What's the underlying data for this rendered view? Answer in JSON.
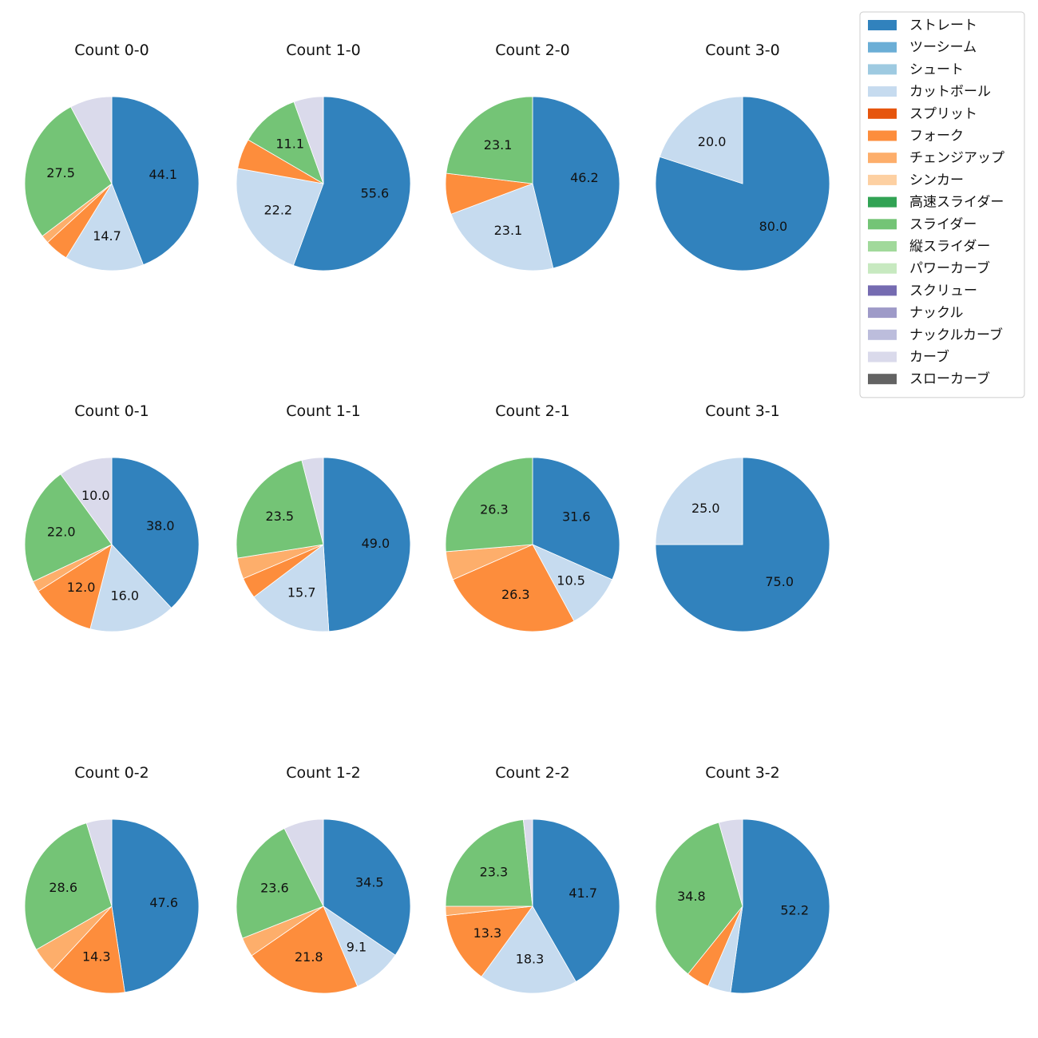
{
  "chart_data": {
    "type": "pie",
    "legend": {
      "placement": "top-right",
      "entries": [
        {
          "name": "ストレート",
          "color": "#3182bd"
        },
        {
          "name": "ツーシーム",
          "color": "#6baed6"
        },
        {
          "name": "シュート",
          "color": "#9ecae1"
        },
        {
          "name": "カットボール",
          "color": "#c6dbef"
        },
        {
          "name": "スプリット",
          "color": "#e6550d"
        },
        {
          "name": "フォーク",
          "color": "#fd8d3c"
        },
        {
          "name": "チェンジアップ",
          "color": "#fdae6b"
        },
        {
          "name": "シンカー",
          "color": "#fdd0a2"
        },
        {
          "name": "高速スライダー",
          "color": "#31a354"
        },
        {
          "name": "スライダー",
          "color": "#74c476"
        },
        {
          "name": "縦スライダー",
          "color": "#a1d99b"
        },
        {
          "name": "パワーカーブ",
          "color": "#c7e9c0"
        },
        {
          "name": "スクリュー",
          "color": "#756bb1"
        },
        {
          "name": "ナックル",
          "color": "#9e9ac8"
        },
        {
          "name": "ナックルカーブ",
          "color": "#bcbddc"
        },
        {
          "name": "カーブ",
          "color": "#dadaeb"
        },
        {
          "name": "スローカーブ",
          "color": "#636363"
        }
      ]
    },
    "pies": [
      {
        "title": "Count 0-0",
        "slices": [
          {
            "pitch": "ストレート",
            "value": 44.1,
            "label": "44.1"
          },
          {
            "pitch": "カットボール",
            "value": 14.7,
            "label": "14.7"
          },
          {
            "pitch": "フォーク",
            "value": 4.4,
            "label": ""
          },
          {
            "pitch": "チェンジアップ",
            "value": 1.5,
            "label": ""
          },
          {
            "pitch": "スライダー",
            "value": 27.5,
            "label": "27.5"
          },
          {
            "pitch": "カーブ",
            "value": 7.8,
            "label": ""
          }
        ]
      },
      {
        "title": "Count 1-0",
        "slices": [
          {
            "pitch": "ストレート",
            "value": 55.6,
            "label": "55.6"
          },
          {
            "pitch": "カットボール",
            "value": 22.2,
            "label": "22.2"
          },
          {
            "pitch": "フォーク",
            "value": 5.6,
            "label": ""
          },
          {
            "pitch": "スライダー",
            "value": 11.1,
            "label": "11.1"
          },
          {
            "pitch": "カーブ",
            "value": 5.5,
            "label": ""
          }
        ]
      },
      {
        "title": "Count 2-0",
        "slices": [
          {
            "pitch": "ストレート",
            "value": 46.2,
            "label": "46.2"
          },
          {
            "pitch": "カットボール",
            "value": 23.1,
            "label": "23.1"
          },
          {
            "pitch": "フォーク",
            "value": 7.6,
            "label": ""
          },
          {
            "pitch": "スライダー",
            "value": 23.1,
            "label": "23.1"
          }
        ]
      },
      {
        "title": "Count 3-0",
        "slices": [
          {
            "pitch": "ストレート",
            "value": 80.0,
            "label": "80.0"
          },
          {
            "pitch": "カットボール",
            "value": 20.0,
            "label": "20.0"
          }
        ]
      },
      {
        "title": "Count 0-1",
        "slices": [
          {
            "pitch": "ストレート",
            "value": 38.0,
            "label": "38.0"
          },
          {
            "pitch": "カットボール",
            "value": 16.0,
            "label": "16.0"
          },
          {
            "pitch": "フォーク",
            "value": 12.0,
            "label": "12.0"
          },
          {
            "pitch": "チェンジアップ",
            "value": 2.0,
            "label": ""
          },
          {
            "pitch": "スライダー",
            "value": 22.0,
            "label": "22.0"
          },
          {
            "pitch": "カーブ",
            "value": 10.0,
            "label": "10.0"
          }
        ]
      },
      {
        "title": "Count 1-1",
        "slices": [
          {
            "pitch": "ストレート",
            "value": 49.0,
            "label": "49.0"
          },
          {
            "pitch": "カットボール",
            "value": 15.7,
            "label": "15.7"
          },
          {
            "pitch": "フォーク",
            "value": 3.9,
            "label": ""
          },
          {
            "pitch": "チェンジアップ",
            "value": 3.9,
            "label": ""
          },
          {
            "pitch": "スライダー",
            "value": 23.5,
            "label": "23.5"
          },
          {
            "pitch": "カーブ",
            "value": 4.0,
            "label": ""
          }
        ]
      },
      {
        "title": "Count 2-1",
        "slices": [
          {
            "pitch": "ストレート",
            "value": 31.6,
            "label": "31.6"
          },
          {
            "pitch": "カットボール",
            "value": 10.5,
            "label": "10.5"
          },
          {
            "pitch": "フォーク",
            "value": 26.3,
            "label": "26.3"
          },
          {
            "pitch": "チェンジアップ",
            "value": 5.3,
            "label": ""
          },
          {
            "pitch": "スライダー",
            "value": 26.3,
            "label": "26.3"
          }
        ]
      },
      {
        "title": "Count 3-1",
        "slices": [
          {
            "pitch": "ストレート",
            "value": 75.0,
            "label": "75.0"
          },
          {
            "pitch": "カットボール",
            "value": 25.0,
            "label": "25.0"
          }
        ]
      },
      {
        "title": "Count 0-2",
        "slices": [
          {
            "pitch": "ストレート",
            "value": 47.6,
            "label": "47.6"
          },
          {
            "pitch": "フォーク",
            "value": 14.3,
            "label": "14.3"
          },
          {
            "pitch": "チェンジアップ",
            "value": 4.8,
            "label": ""
          },
          {
            "pitch": "スライダー",
            "value": 28.6,
            "label": "28.6"
          },
          {
            "pitch": "カーブ",
            "value": 4.7,
            "label": ""
          }
        ]
      },
      {
        "title": "Count 1-2",
        "slices": [
          {
            "pitch": "ストレート",
            "value": 34.5,
            "label": "34.5"
          },
          {
            "pitch": "カットボール",
            "value": 9.1,
            "label": "9.1"
          },
          {
            "pitch": "フォーク",
            "value": 21.8,
            "label": "21.8"
          },
          {
            "pitch": "チェンジアップ",
            "value": 3.6,
            "label": ""
          },
          {
            "pitch": "スライダー",
            "value": 23.6,
            "label": "23.6"
          },
          {
            "pitch": "カーブ",
            "value": 7.4,
            "label": ""
          }
        ]
      },
      {
        "title": "Count 2-2",
        "slices": [
          {
            "pitch": "ストレート",
            "value": 41.7,
            "label": "41.7"
          },
          {
            "pitch": "カットボール",
            "value": 18.3,
            "label": "18.3"
          },
          {
            "pitch": "フォーク",
            "value": 13.3,
            "label": "13.3"
          },
          {
            "pitch": "チェンジアップ",
            "value": 1.7,
            "label": ""
          },
          {
            "pitch": "スライダー",
            "value": 23.3,
            "label": "23.3"
          },
          {
            "pitch": "カーブ",
            "value": 1.7,
            "label": ""
          }
        ]
      },
      {
        "title": "Count 3-2",
        "slices": [
          {
            "pitch": "ストレート",
            "value": 52.2,
            "label": "52.2"
          },
          {
            "pitch": "カットボール",
            "value": 4.3,
            "label": ""
          },
          {
            "pitch": "フォーク",
            "value": 4.3,
            "label": ""
          },
          {
            "pitch": "スライダー",
            "value": 34.8,
            "label": "34.8"
          },
          {
            "pitch": "カーブ",
            "value": 4.4,
            "label": ""
          }
        ]
      }
    ]
  }
}
